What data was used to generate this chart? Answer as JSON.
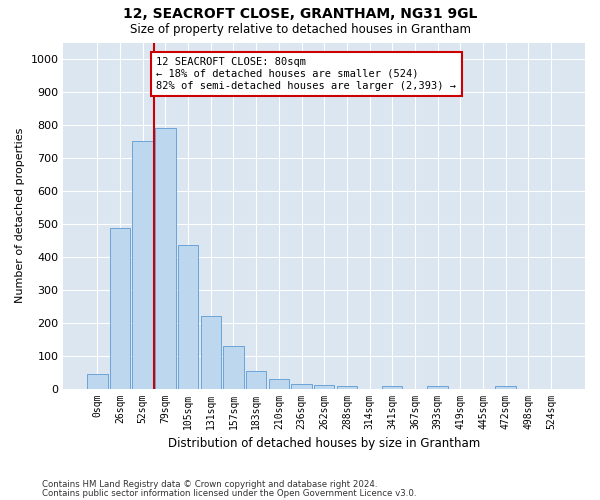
{
  "title": "12, SEACROFT CLOSE, GRANTHAM, NG31 9GL",
  "subtitle": "Size of property relative to detached houses in Grantham",
  "xlabel": "Distribution of detached houses by size in Grantham",
  "ylabel": "Number of detached properties",
  "categories": [
    "0sqm",
    "26sqm",
    "52sqm",
    "79sqm",
    "105sqm",
    "131sqm",
    "157sqm",
    "183sqm",
    "210sqm",
    "236sqm",
    "262sqm",
    "288sqm",
    "314sqm",
    "341sqm",
    "367sqm",
    "393sqm",
    "419sqm",
    "445sqm",
    "472sqm",
    "498sqm",
    "524sqm"
  ],
  "values": [
    45,
    488,
    750,
    790,
    435,
    220,
    128,
    52,
    28,
    15,
    10,
    8,
    0,
    7,
    0,
    7,
    0,
    0,
    7,
    0,
    0
  ],
  "bar_color": "#bdd7ee",
  "bar_edge_color": "#5b9bd5",
  "background_color": "#dce6f1",
  "grid_color": "#ffffff",
  "annotation_text": "12 SEACROFT CLOSE: 80sqm\n← 18% of detached houses are smaller (524)\n82% of semi-detached houses are larger (2,393) →",
  "annotation_box_color": "#ffffff",
  "annotation_box_edge": "#cc0000",
  "vline_color": "#cc0000",
  "vline_x": 2.5,
  "ylim": [
    0,
    1050
  ],
  "yticks": [
    0,
    100,
    200,
    300,
    400,
    500,
    600,
    700,
    800,
    900,
    1000
  ],
  "footnote1": "Contains HM Land Registry data © Crown copyright and database right 2024.",
  "footnote2": "Contains public sector information licensed under the Open Government Licence v3.0."
}
